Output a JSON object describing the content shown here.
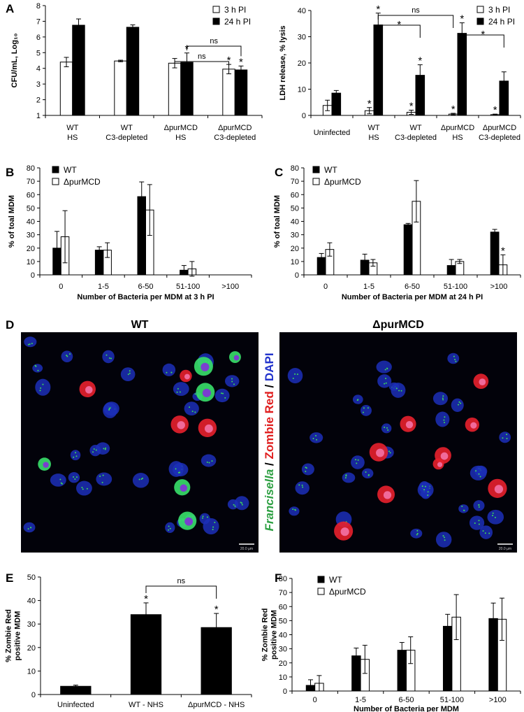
{
  "chart_data": [
    {
      "type": "bar",
      "panel_label": "A",
      "y_label": "CFU/mL, Log₁₀",
      "categories": [
        "WT\nHS",
        "WT\nC3-depleted",
        "ΔpurMCD\nHS",
        "ΔpurMCD\nC3-depleted"
      ],
      "series": [
        {
          "name": "3 h PI",
          "color": "#ffffff",
          "values": [
            4.4,
            4.47,
            4.33,
            3.95
          ],
          "errors": [
            0.3,
            0.05,
            0.3,
            0.3
          ]
        },
        {
          "name": "24 h PI",
          "color": "#000000",
          "values": [
            6.75,
            6.62,
            4.38,
            3.9
          ],
          "errors": [
            0.4,
            0.15,
            0.6,
            0.25
          ]
        }
      ],
      "ylim": [
        1,
        8
      ],
      "yticks": [
        1,
        2,
        3,
        4,
        5,
        6,
        7,
        8
      ],
      "legend": "upper-right",
      "stars": [
        {
          "text": "*",
          "series": 1,
          "index": 2
        },
        {
          "text": "*",
          "series": 0,
          "index": 3
        },
        {
          "text": "*",
          "series": 1,
          "index": 3
        }
      ],
      "brackets": [
        {
          "text": "ns",
          "from": [
            1,
            2
          ],
          "to": [
            1,
            3
          ]
        },
        {
          "text": "ns",
          "from": [
            0,
            2
          ],
          "to": [
            0,
            3
          ]
        }
      ]
    },
    {
      "type": "bar",
      "y_label": "LDH release, % lysis",
      "categories": [
        "Uninfected",
        "WT\nHS",
        "WT\nC3-depleted",
        "ΔpurMCD\nHS",
        "ΔpurMCD\nC3-depleted"
      ],
      "series": [
        {
          "name": "3 h PI",
          "color": "#ffffff",
          "values": [
            3.8,
            1.8,
            1.2,
            0.5,
            0.3
          ],
          "errors": [
            2,
            1.2,
            0.8,
            0.3,
            0.2
          ]
        },
        {
          "name": "24 h PI",
          "color": "#000000",
          "values": [
            8.5,
            34.5,
            15.3,
            31.3,
            13.1
          ],
          "errors": [
            1,
            4.5,
            4,
            4,
            3.5
          ]
        }
      ],
      "ylim": [
        0,
        40
      ],
      "yticks": [
        0,
        10,
        20,
        30,
        40
      ],
      "legend": "upper-right",
      "stars": [
        {
          "text": "*",
          "series": 0,
          "index": 1
        },
        {
          "text": "*",
          "series": 1,
          "index": 1
        },
        {
          "text": "*",
          "series": 0,
          "index": 2
        },
        {
          "text": "*",
          "series": 1,
          "index": 2
        },
        {
          "text": "*",
          "series": 0,
          "index": 3
        },
        {
          "text": "*",
          "series": 1,
          "index": 3
        },
        {
          "text": "*",
          "series": 0,
          "index": 4
        }
      ],
      "brackets": [
        {
          "text": "ns",
          "from": [
            1,
            1
          ],
          "to": [
            0,
            3
          ]
        },
        {
          "text": "*",
          "from": [
            1,
            1
          ],
          "to": [
            1,
            2
          ]
        },
        {
          "text": "*",
          "from": [
            1,
            3
          ],
          "to": [
            1,
            4
          ]
        }
      ]
    },
    {
      "type": "bar",
      "panel_label": "B",
      "y_label": "% of toal MDM",
      "x_label": "Number of Bacteria per MDM at 3 h PI",
      "categories": [
        "0",
        "1-5",
        "6-50",
        "51-100",
        ">100"
      ],
      "series": [
        {
          "name": "WT",
          "color": "#000000",
          "values": [
            20,
            18.5,
            58.5,
            3.5,
            0
          ],
          "errors": [
            12.5,
            2.5,
            11,
            3.5,
            0
          ]
        },
        {
          "name": "ΔpurMCD",
          "color": "#ffffff",
          "values": [
            28.5,
            18.5,
            48.5,
            4.5,
            0
          ],
          "errors": [
            19.5,
            5.5,
            19,
            5.5,
            0
          ]
        }
      ],
      "ylim": [
        0,
        80
      ],
      "yticks": [
        0,
        10,
        20,
        30,
        40,
        50,
        60,
        70,
        80
      ],
      "legend": "upper-left"
    },
    {
      "type": "bar",
      "panel_label": "C",
      "y_label": "% of toal MDM",
      "x_label": "Number of Bacteria per MDM at 24 h PI",
      "categories": [
        "0",
        "1-5",
        "6-50",
        "51-100",
        ">100"
      ],
      "series": [
        {
          "name": "WT",
          "color": "#000000",
          "values": [
            13,
            11,
            37.5,
            7,
            32
          ],
          "errors": [
            3,
            4.5,
            1,
            4.5,
            2
          ]
        },
        {
          "name": "ΔpurMCD",
          "color": "#ffffff",
          "values": [
            19,
            9,
            55,
            10,
            7.5
          ],
          "errors": [
            5,
            2.5,
            15.5,
            1.5,
            7.5
          ]
        }
      ],
      "ylim": [
        0,
        80
      ],
      "yticks": [
        0,
        10,
        20,
        30,
        40,
        50,
        60,
        70,
        80
      ],
      "legend": "upper-left",
      "stars": [
        {
          "text": "*",
          "series": 1,
          "index": 4
        }
      ]
    },
    {
      "type": "bar",
      "panel_label": "E",
      "y_label": "% Zombie Red\npositive MDM",
      "categories": [
        "Uninfected",
        "WT - NHS",
        "ΔpurMCD - NHS"
      ],
      "series": [
        {
          "color": "#000000",
          "values": [
            3.5,
            34,
            28.5
          ],
          "errors": [
            0.5,
            5,
            6
          ]
        }
      ],
      "ylim": [
        0,
        50
      ],
      "yticks": [
        0,
        10,
        20,
        30,
        40,
        50
      ],
      "stars": [
        {
          "text": "*",
          "series": 0,
          "index": 1
        },
        {
          "text": "*",
          "series": 0,
          "index": 2
        }
      ],
      "brackets": [
        {
          "text": "ns",
          "from": [
            0,
            1
          ],
          "to": [
            0,
            2
          ]
        }
      ]
    },
    {
      "type": "bar",
      "panel_label": "F",
      "y_label": "% Zombie Red\npositive MDM",
      "x_label": "Number of Bacteria per MDM",
      "categories": [
        "0",
        "1-5",
        "6-50",
        "51-100",
        ">100"
      ],
      "series": [
        {
          "name": "WT",
          "color": "#000000",
          "values": [
            4,
            25,
            29,
            46,
            51.5
          ],
          "errors": [
            4,
            5.5,
            5.5,
            8.5,
            11
          ]
        },
        {
          "name": "ΔpurMCD",
          "color": "#ffffff",
          "values": [
            5.5,
            22.5,
            29,
            52.5,
            51
          ],
          "errors": [
            5.5,
            10,
            9.5,
            16,
            15
          ]
        }
      ],
      "ylim": [
        0,
        80
      ],
      "yticks": [
        0,
        10,
        20,
        30,
        40,
        50,
        60,
        70,
        80
      ],
      "legend": "upper-left"
    }
  ],
  "panel_d": {
    "panel_label": "D",
    "titles": [
      "WT",
      "ΔpurMCD"
    ],
    "stain_label": [
      {
        "text": "Francisella",
        "color": "#2ea043",
        "italic": true
      },
      {
        "text": " / ",
        "color": "#000000"
      },
      {
        "text": "Zombie Red",
        "color": "#e01e1e"
      },
      {
        "text": " / ",
        "color": "#000000"
      },
      {
        "text": "DAPI",
        "color": "#2233cc"
      }
    ],
    "scale_bar": "20.0 µm"
  }
}
